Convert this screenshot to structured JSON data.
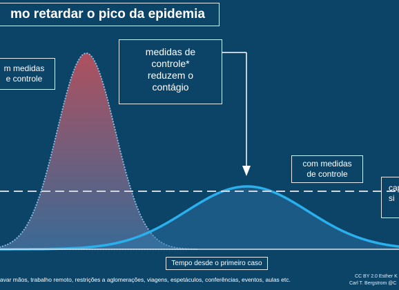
{
  "title": "mo retardar o pico da epidemia",
  "labels": {
    "no_measures_line1": "m medidas",
    "no_measures_line2": "e controle",
    "measures_line1": "medidas de",
    "measures_line2": "controle*",
    "measures_line3": "reduzem o",
    "measures_line4": "contágio",
    "with_measures_line1": "com medidas",
    "with_measures_line2": "de controle",
    "capacity_line1": "cap",
    "capacity_line2": "si"
  },
  "x_axis_label": "Tempo desde o primeiro caso",
  "footnote": "lavar mãos, trabalho remoto, restrições a aglomerações, viagens, espetáculos, conferências, eventos, aulas etc.",
  "credits": {
    "line1": "CC BY 2.0  Esther K",
    "line2": "Carl T. Bergstrom  @C"
  },
  "colors": {
    "background": "#0c4468",
    "peak_top": "#c0525e",
    "peak_bottom": "#3f6e9a",
    "flat_curve": "#2ab0ec",
    "capacity_line": "#cfd8e0",
    "text": "#ffffff"
  }
}
